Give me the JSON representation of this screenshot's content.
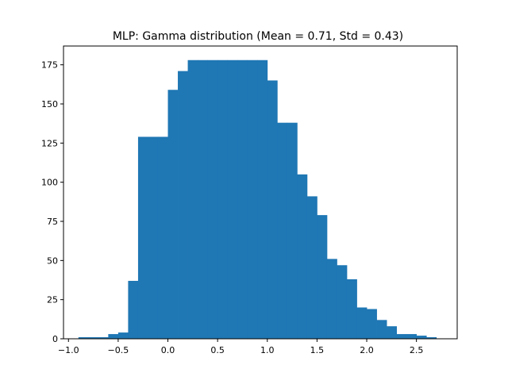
{
  "chart_data": {
    "type": "bar",
    "histogram": true,
    "title": "MLP: Gamma distribution (Mean = 0.71, Std = 0.43)",
    "xlabel": "",
    "ylabel": "",
    "xlim": [
      -1.05,
      2.91
    ],
    "ylim": [
      0,
      187
    ],
    "xticks": [
      -1.0,
      -0.5,
      0.0,
      0.5,
      1.0,
      1.5,
      2.0,
      2.5
    ],
    "xtick_labels": [
      "−1.0",
      "−0.5",
      "0.0",
      "0.5",
      "1.0",
      "1.5",
      "2.0",
      "2.5"
    ],
    "yticks": [
      0,
      25,
      50,
      75,
      100,
      125,
      150,
      175
    ],
    "ytick_labels": [
      "0",
      "25",
      "50",
      "75",
      "100",
      "125",
      "150",
      "175"
    ],
    "bin_edges": [
      -0.9,
      -0.8,
      -0.7,
      -0.6,
      -0.5,
      -0.4,
      -0.3,
      -0.2,
      -0.1,
      0.0,
      0.1,
      0.2,
      0.3,
      0.4,
      0.5,
      0.6,
      0.7,
      0.8,
      0.9,
      1.0,
      1.1,
      1.2,
      1.3,
      1.4,
      1.5,
      1.6,
      1.7,
      1.8,
      1.9,
      2.0,
      2.1,
      2.2,
      2.3,
      2.4,
      2.5,
      2.6,
      2.7
    ],
    "counts": [
      1,
      1,
      1,
      3,
      4,
      37,
      129,
      129,
      129,
      159,
      171,
      178,
      178,
      178,
      178,
      178,
      178,
      178,
      178,
      165,
      138,
      138,
      105,
      91,
      79,
      51,
      47,
      38,
      20,
      19,
      12,
      8,
      3,
      3,
      2,
      1
    ],
    "bar_color": "#1f77b4",
    "grid": false,
    "legend": "none"
  }
}
